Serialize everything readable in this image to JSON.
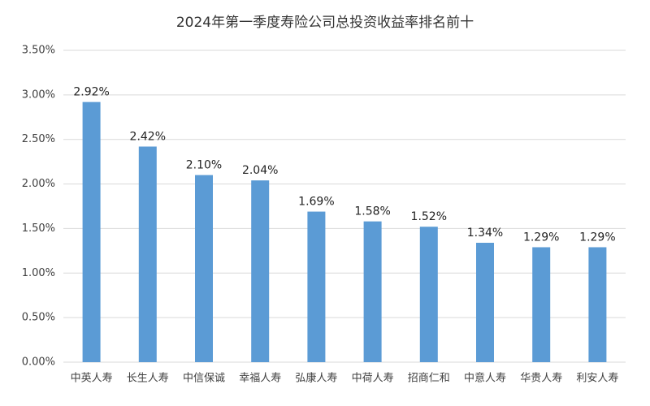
{
  "chart_data": {
    "type": "bar",
    "title": "2024年第一季度寿险公司总投资收益率排名前十",
    "categories": [
      "中英人寿",
      "长生人寿",
      "中信保诚",
      "幸福人寿",
      "弘康人寿",
      "中荷人寿",
      "招商仁和",
      "中意人寿",
      "华贵人寿",
      "利安人寿"
    ],
    "values": [
      2.92,
      2.42,
      2.1,
      2.04,
      1.69,
      1.58,
      1.52,
      1.34,
      1.29,
      1.29
    ],
    "value_labels": [
      "2.92%",
      "2.42%",
      "2.10%",
      "2.04%",
      "1.69%",
      "1.58%",
      "1.52%",
      "1.34%",
      "1.29%",
      "1.29%"
    ],
    "color": "#5b9bd5",
    "ylim": [
      0,
      3.5
    ],
    "yticks": [
      {
        "value": 0,
        "label": "0.00%"
      },
      {
        "value": 0.5,
        "label": "0.50%"
      },
      {
        "value": 1,
        "label": "1.00%"
      },
      {
        "value": 1.5,
        "label": "1.50%"
      },
      {
        "value": 2,
        "label": "2.00%"
      },
      {
        "value": 2.5,
        "label": "2.50%"
      },
      {
        "value": 3,
        "label": "3.00%"
      },
      {
        "value": 3.5,
        "label": "3.50%"
      }
    ],
    "grid": true
  }
}
